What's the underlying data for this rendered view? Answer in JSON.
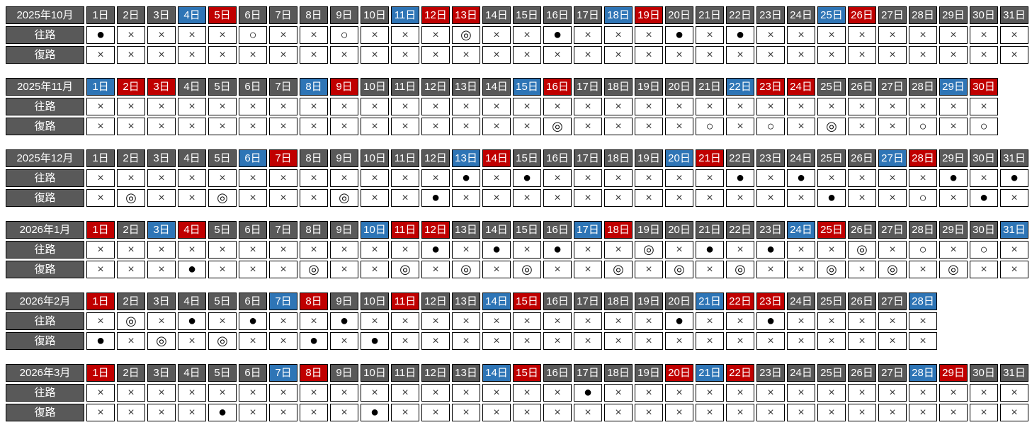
{
  "row_labels": {
    "outbound": "往路",
    "return": "復路"
  },
  "day_labels": [
    "1日",
    "2日",
    "3日",
    "4日",
    "5日",
    "6日",
    "7日",
    "8日",
    "9日",
    "10日",
    "11日",
    "12日",
    "13日",
    "14日",
    "15日",
    "16日",
    "17日",
    "18日",
    "19日",
    "20日",
    "21日",
    "22日",
    "23日",
    "24日",
    "25日",
    "26日",
    "27日",
    "28日",
    "29日",
    "30日",
    "31日"
  ],
  "colors": {
    "weekday_bg": "#595959",
    "saturday_bg": "#2e75b6",
    "sunday_holiday_bg": "#c00000",
    "cell_bg": "#ffffff",
    "border": "#000000",
    "header_text": "#ffffff"
  },
  "symbols": {
    "unavailable": "×",
    "available_circle": "○",
    "available_double_circle": "◎",
    "filled_circle": "●"
  },
  "months": [
    {
      "label": "2025年10月",
      "num_days": 31,
      "day_types": "wwwshwwwwwshhwwwwshwwwwwshwwwww",
      "outbound": "●××××○××○×××◎××●×××●×●×××××××××",
      "return": "×××××××××××××××××××××××××××××××"
    },
    {
      "label": "2025年11月",
      "num_days": 30,
      "day_types": "shhwwwwshwwwwwshwwwwwshhwwwwsh",
      "outbound": "××××××××××××××××××××××××××××××",
      "return": "×××××××××××××××◎××××○×○×◎××○×○"
    },
    {
      "label": "2025年12月",
      "num_days": 31,
      "day_types": "wwwwwshwwwwwshwwwwwshwwwwwshwww",
      "outbound": "××××××××××××●×●××××××●×●××××●×●",
      "return": "×◎××◎×××◎××●××××××××××××●××○×●×"
    },
    {
      "label": "2026年1月",
      "num_days": 31,
      "day_types": "hwshwwwwwshhwwwwshwwwwwshwwwwws",
      "outbound": "×××××××××××●×●×●××◎×●×●××◎×○×○×",
      "return": "×××●×××◎××◎×◎×◎××◎×◎×◎××◎×◎×◎××"
    },
    {
      "label": "2026年2月",
      "num_days": 28,
      "day_types": "hwwwwwshwwhwwshwwwwwshhwwwws",
      "outbound": "×◎×●×●××●××××××××××●××●×××××",
      "return": "●×◎×◎××●×●××××××××××××××××××"
    },
    {
      "label": "2026年3月",
      "num_days": 31,
      "day_types": "hwwwwwshwwwwwshwwwwhshwwwwwshww",
      "outbound": "××××××××××××××××●××××××××××××××",
      "return": "××××●××××●×××××××××××××××××××××"
    }
  ]
}
